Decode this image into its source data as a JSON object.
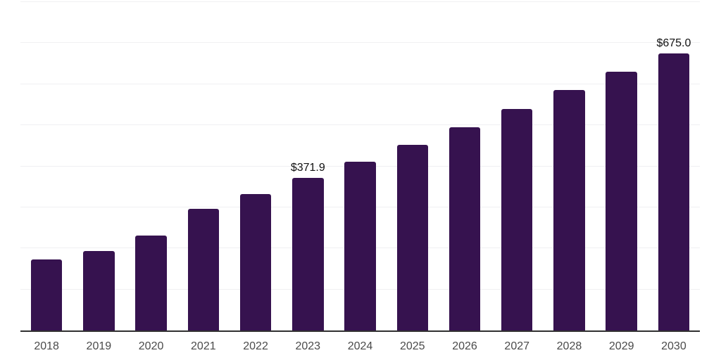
{
  "chart_data": {
    "type": "bar",
    "title": "",
    "xlabel": "",
    "ylabel": "",
    "categories": [
      "2018",
      "2019",
      "2020",
      "2021",
      "2022",
      "2023",
      "2024",
      "2025",
      "2026",
      "2027",
      "2028",
      "2029",
      "2030"
    ],
    "points": [
      {
        "year": "2018",
        "value": 173,
        "label": null
      },
      {
        "year": "2019",
        "value": 193,
        "label": null
      },
      {
        "year": "2020",
        "value": 231,
        "label": null
      },
      {
        "year": "2021",
        "value": 297,
        "label": null
      },
      {
        "year": "2022",
        "value": 333,
        "label": null
      },
      {
        "year": "2023",
        "value": 371.9,
        "label": "$371.9"
      },
      {
        "year": "2024",
        "value": 412,
        "label": null
      },
      {
        "year": "2025",
        "value": 453,
        "label": null
      },
      {
        "year": "2026",
        "value": 496,
        "label": null
      },
      {
        "year": "2027",
        "value": 540,
        "label": null
      },
      {
        "year": "2028",
        "value": 586,
        "label": null
      },
      {
        "year": "2029",
        "value": 631,
        "label": null
      },
      {
        "year": "2030",
        "value": 675,
        "label": "$675.0"
      }
    ],
    "displayed_value_labels": [
      "$371.9",
      "$675.0"
    ],
    "ylim": [
      0,
      800
    ],
    "gridline_step": 100,
    "grid": "horizontal",
    "legend": "none",
    "colors": {
      "bar": "#36124f",
      "axis_line": "#303030",
      "gridline": "#f0f0f2",
      "value_label_text": "#111111",
      "tick_label_text": "#4a4a4a",
      "background": "#ffffff"
    }
  }
}
